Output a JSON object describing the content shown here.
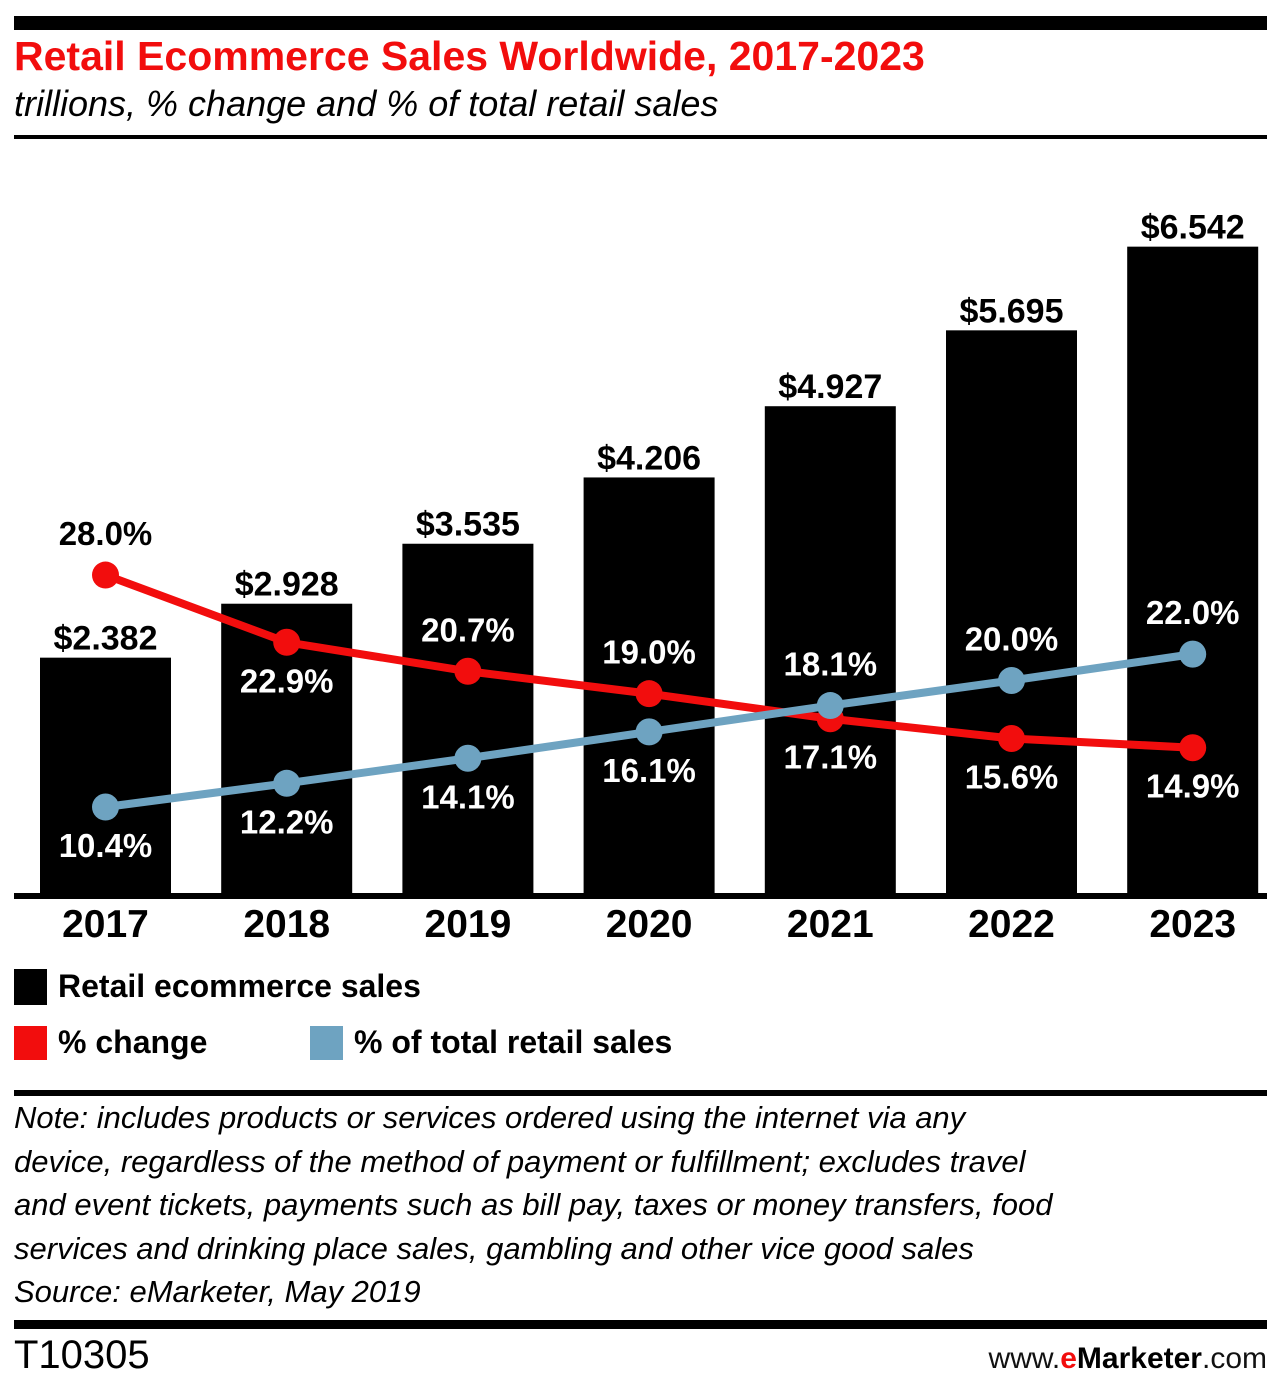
{
  "header": {
    "title": "Retail Ecommerce Sales Worldwide, 2017-2023",
    "subtitle": "trillions, % change and % of total retail sales"
  },
  "chart_data": {
    "type": "bar+line",
    "categories": [
      "2017",
      "2018",
      "2019",
      "2020",
      "2021",
      "2022",
      "2023"
    ],
    "series": [
      {
        "name": "Retail ecommerce sales",
        "type": "bar",
        "unit": "$ trillions",
        "color": "#000000",
        "values": [
          2.382,
          2.928,
          3.535,
          4.206,
          4.927,
          5.695,
          6.542
        ],
        "labels": [
          "$2.382",
          "$2.928",
          "$3.535",
          "$4.206",
          "$4.927",
          "$5.695",
          "$6.542"
        ]
      },
      {
        "name": "% change",
        "type": "line",
        "color": "#f20d0d",
        "values": [
          28.0,
          22.9,
          20.7,
          19.0,
          17.1,
          15.6,
          14.9
        ],
        "labels": [
          "28.0%",
          "22.9%",
          "20.7%",
          "19.0%",
          "17.1%",
          "15.6%",
          "14.9%"
        ],
        "label_sides": [
          "above",
          "below",
          "above",
          "above",
          "below",
          "below",
          "below"
        ],
        "label_colors": [
          "#000000",
          "#ffffff",
          "#ffffff",
          "#ffffff",
          "#ffffff",
          "#ffffff",
          "#ffffff"
        ]
      },
      {
        "name": "% of total retail sales",
        "type": "line",
        "color": "#6ea3c1",
        "values": [
          10.4,
          12.2,
          14.1,
          16.1,
          18.1,
          20.0,
          22.0
        ],
        "labels": [
          "10.4%",
          "12.2%",
          "14.1%",
          "16.1%",
          "18.1%",
          "20.0%",
          "22.0%"
        ],
        "label_sides": [
          "below",
          "below",
          "below",
          "below",
          "above",
          "above",
          "above"
        ],
        "label_colors": [
          "#ffffff",
          "#ffffff",
          "#ffffff",
          "#ffffff",
          "#ffffff",
          "#ffffff",
          "#ffffff"
        ]
      }
    ],
    "value_axis_range_trillions": [
      0,
      6.6
    ],
    "grid": false,
    "legend_position": "below"
  },
  "legend": {
    "bars_label": "Retail ecommerce sales",
    "red_label": "% change",
    "blue_label": "% of total retail sales"
  },
  "note_lines": [
    "Note: includes products or services ordered using the internet via any",
    "device, regardless of the method of payment or fulfillment; excludes travel",
    "and event tickets, payments such as bill pay, taxes or money transfers, food",
    "services and drinking place sales, gambling and other vice good sales"
  ],
  "source": "Source: eMarketer, May 2019",
  "footer": {
    "chart_id": "T10305",
    "url_www": "www.",
    "url_e": "e",
    "url_marketer": "Marketer",
    "url_com": ".com"
  },
  "colors": {
    "accent_red": "#f20d0d",
    "line_blue": "#6ea3c1",
    "bar_black": "#000000"
  }
}
